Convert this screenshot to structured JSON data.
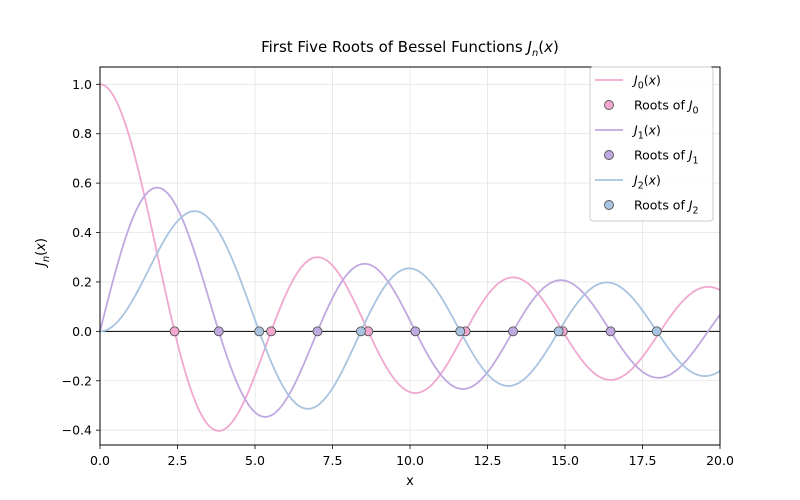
{
  "chart_data": {
    "type": "line",
    "title": "First Five Roots of Bessel Functions",
    "title_math": "J_n(x)",
    "xlabel": "x",
    "ylabel": "J_n(x)",
    "xlim": [
      0,
      20
    ],
    "ylim": [
      -0.46,
      1.07
    ],
    "xticks": [
      "0.0",
      "2.5",
      "5.0",
      "7.5",
      "10.0",
      "12.5",
      "15.0",
      "17.5",
      "20.0"
    ],
    "yticks": [
      "−0.4",
      "−0.2",
      "0.0",
      "0.2",
      "0.4",
      "0.6",
      "0.8",
      "1.0"
    ],
    "grid": true,
    "zero_line": true,
    "legend_position": "top-right",
    "series": [
      {
        "name": "J_0(x)",
        "order": 0,
        "color": "#f0a8d0",
        "roots_name": "Roots of J_0",
        "roots": [
          2.405,
          5.52,
          8.654,
          11.792,
          14.931
        ]
      },
      {
        "name": "J_1(x)",
        "order": 1,
        "color": "#c0a8e0",
        "roots_name": "Roots of J_1",
        "roots": [
          3.832,
          7.016,
          10.173,
          13.324,
          16.471
        ]
      },
      {
        "name": "J_2(x)",
        "order": 2,
        "color": "#a8c4e0",
        "roots_name": "Roots of J_2",
        "roots": [
          5.136,
          8.417,
          11.62,
          14.796,
          17.96
        ]
      }
    ]
  }
}
